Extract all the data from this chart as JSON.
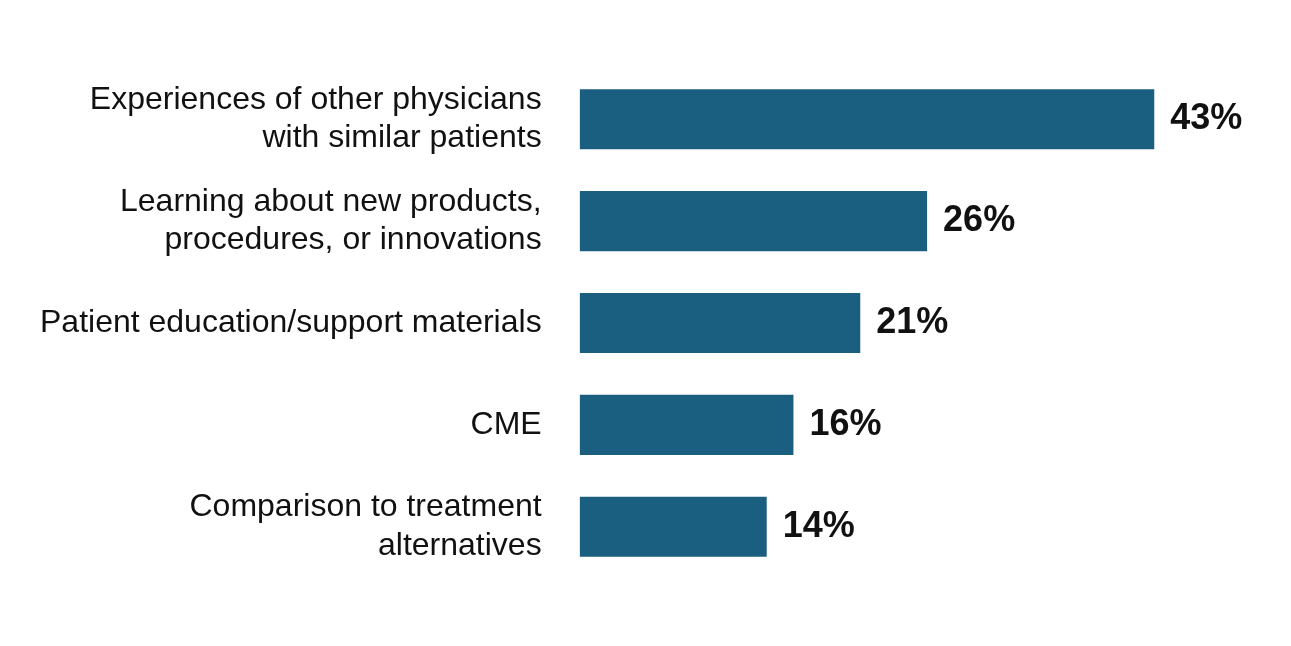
{
  "chart_data": {
    "type": "bar",
    "orientation": "horizontal",
    "categories": [
      "Experiences of other physicians with similar patients",
      "Learning about new products, procedures, or innovations",
      "Patient education/support materials",
      "CME",
      "Comparison to treatment alternatives"
    ],
    "values": [
      43,
      26,
      21,
      16,
      14
    ],
    "value_labels": [
      "43%",
      "26%",
      "21%",
      "16%",
      "14%"
    ],
    "color": "#1a5f80"
  }
}
